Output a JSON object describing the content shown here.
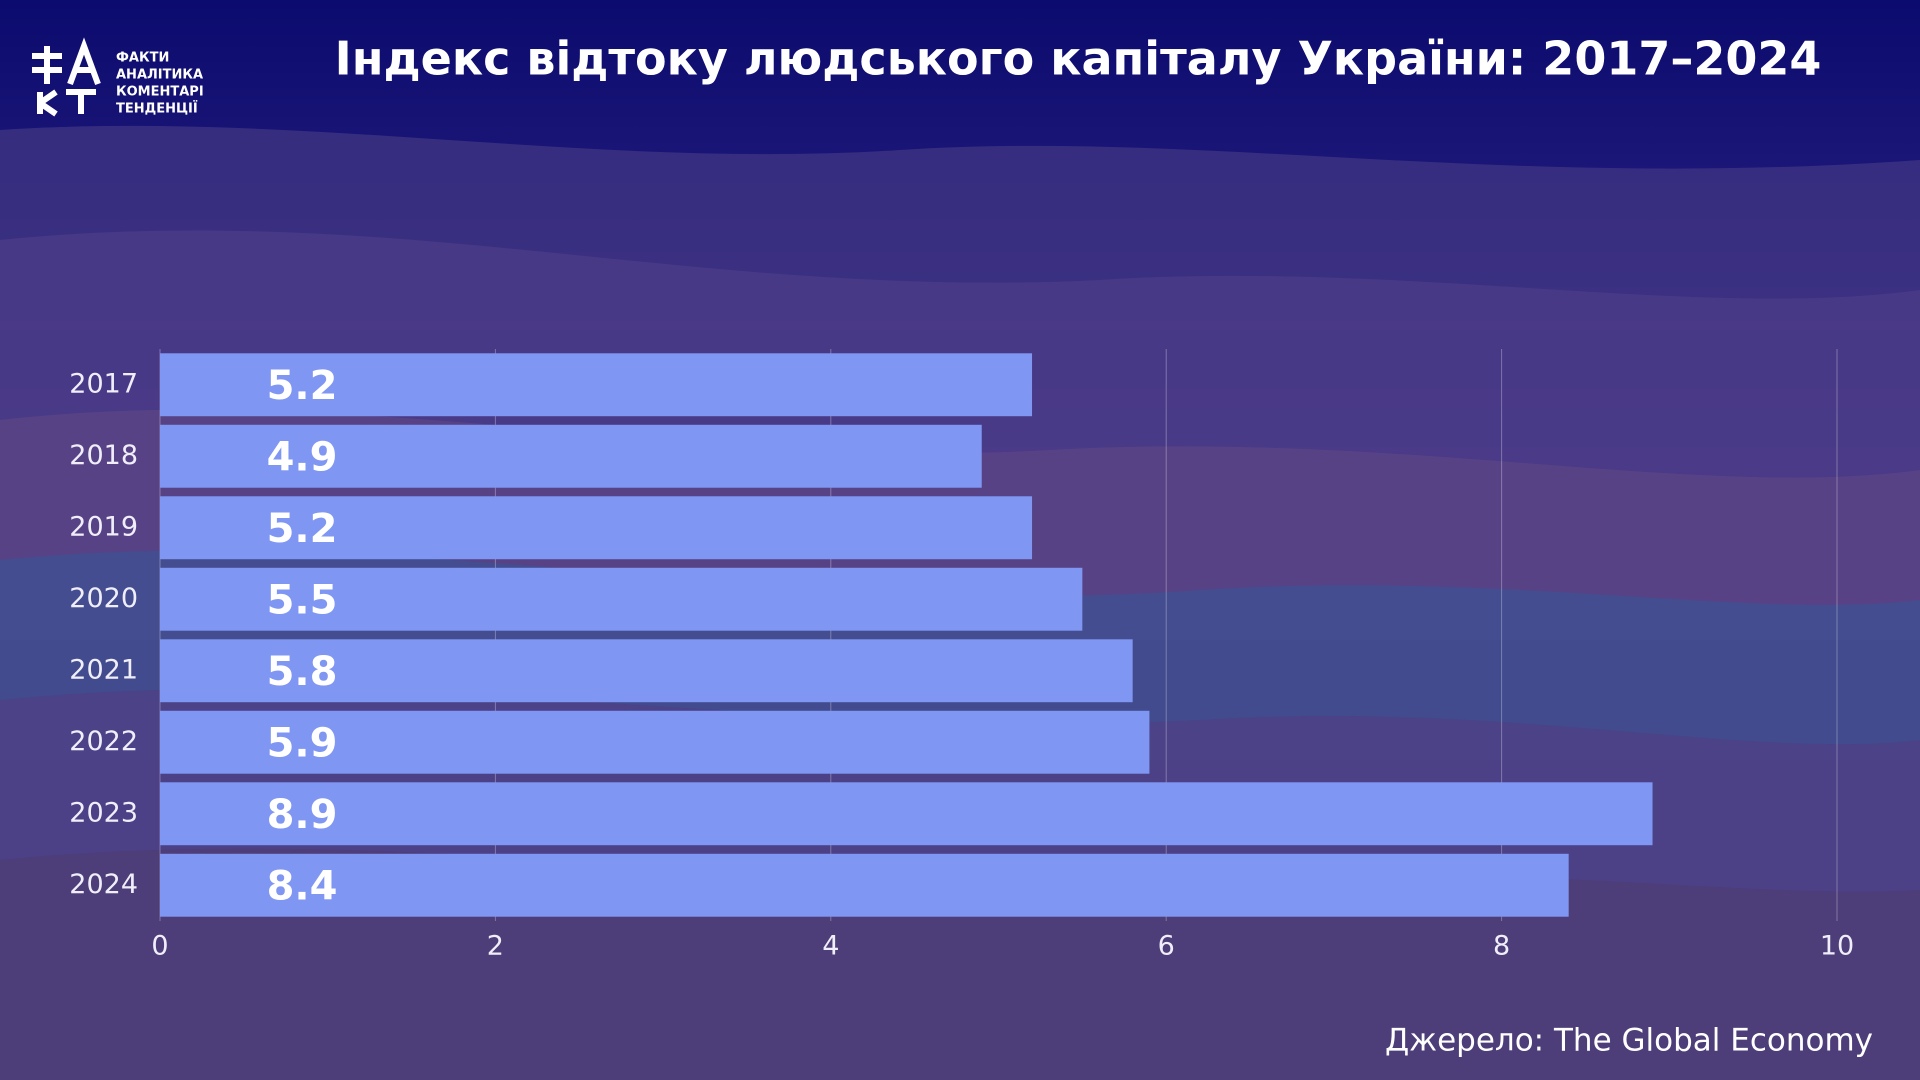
{
  "chart_data": {
    "type": "bar",
    "orientation": "horizontal",
    "title": "Індекс відтоку людського капіталу України: 2017–2024",
    "categories": [
      "2017",
      "2018",
      "2019",
      "2020",
      "2021",
      "2022",
      "2023",
      "2024"
    ],
    "values": [
      5.2,
      4.9,
      5.2,
      5.5,
      5.8,
      5.9,
      8.9,
      8.4
    ],
    "color": "#7f96f2",
    "xlim": [
      0,
      10
    ],
    "xticks": [
      0,
      2,
      4,
      6,
      8,
      10
    ],
    "grid": true,
    "source": "Джерело: The Global Economy",
    "logo": [
      "ФАКТИ",
      "АНАЛІТИКА",
      "КОМЕНТАРІ",
      "ТЕНДЕНЦІЇ"
    ]
  }
}
